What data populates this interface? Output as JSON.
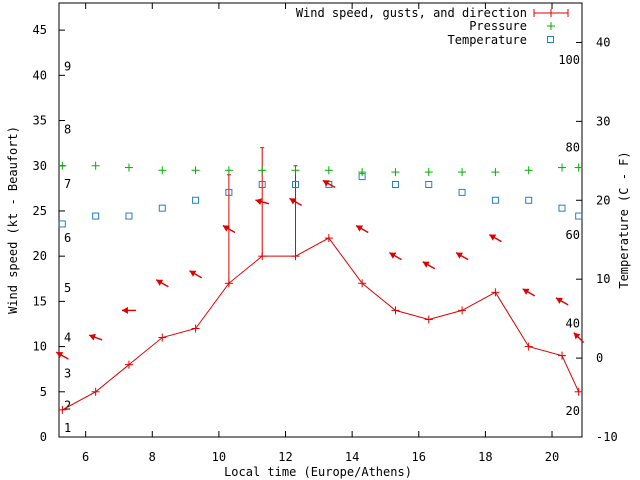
{
  "chart_data": {
    "type": "line",
    "xlabel": "Local time (Europe/Athens)",
    "ylabel_left": "Wind speed (kt - Beaufort)",
    "ylabel_right": "Temperature (C - F)",
    "xlim": [
      5.2,
      20.9
    ],
    "ylim_left": [
      0,
      48
    ],
    "ylim_right": [
      -10,
      45
    ],
    "x_ticks": [
      6,
      8,
      10,
      12,
      14,
      16,
      18,
      20
    ],
    "y_left_ticks": [
      0,
      5,
      10,
      15,
      20,
      25,
      30,
      35,
      40,
      45
    ],
    "y_right_ticks": [
      -10,
      0,
      10,
      20,
      30,
      40
    ],
    "beaufort_labels": [
      {
        "label": "1",
        "kt": 1
      },
      {
        "label": "2",
        "kt": 3.5
      },
      {
        "label": "3",
        "kt": 7
      },
      {
        "label": "4",
        "kt": 11
      },
      {
        "label": "5",
        "kt": 16.5
      },
      {
        "label": "6",
        "kt": 22
      },
      {
        "label": "7",
        "kt": 28
      },
      {
        "label": "8",
        "kt": 34
      },
      {
        "label": "9",
        "kt": 41
      }
    ],
    "fahrenheit_labels": [
      {
        "label": "20",
        "c": -6.7
      },
      {
        "label": "40",
        "c": 4.4
      },
      {
        "label": "60",
        "c": 15.6
      },
      {
        "label": "80",
        "c": 26.7
      },
      {
        "label": "100",
        "c": 37.8
      }
    ],
    "legend": {
      "position": "top-right",
      "entries": [
        "Wind speed, gusts, and direction",
        "Pressure",
        "Temperature"
      ]
    },
    "series": [
      {
        "name": "Wind speed, gusts, and direction",
        "color": "#e00000",
        "x": [
          5.3,
          6.3,
          7.3,
          8.3,
          9.3,
          10.3,
          11.3,
          12.3,
          13.3,
          14.3,
          15.3,
          16.3,
          17.3,
          18.3,
          19.3,
          20.3,
          20.8
        ],
        "values": [
          3,
          5,
          8,
          11,
          12,
          17,
          20,
          20,
          22,
          17,
          14,
          13,
          14,
          16,
          10,
          9,
          5
        ],
        "gusts": [
          {
            "x": 10.3,
            "value": 29
          },
          {
            "x": 11.3,
            "value": 32
          },
          {
            "x": 12.3,
            "value": 30
          }
        ],
        "direction_angles_deg": [
          60,
          70,
          90,
          60,
          60,
          60,
          75,
          60,
          60,
          60,
          60,
          60,
          60,
          60,
          60,
          60,
          45
        ]
      },
      {
        "name": "Pressure",
        "color": "#00b000",
        "x": [
          5.3,
          6.3,
          7.3,
          8.3,
          9.3,
          10.3,
          11.3,
          12.3,
          13.3,
          14.3,
          15.3,
          16.3,
          17.3,
          18.3,
          19.3,
          20.3,
          20.8
        ],
        "values": [
          30,
          30,
          29.8,
          29.5,
          29.5,
          29.5,
          29.5,
          29.5,
          29.5,
          29.3,
          29.3,
          29.3,
          29.3,
          29.3,
          29.5,
          29.8,
          29.8
        ]
      },
      {
        "name": "Temperature",
        "color": "#1f7fcf",
        "axis": "right",
        "x": [
          5.3,
          6.3,
          7.3,
          8.3,
          9.3,
          10.3,
          11.3,
          12.3,
          13.3,
          14.3,
          15.3,
          16.3,
          17.3,
          18.3,
          19.3,
          20.3,
          20.8
        ],
        "values": [
          17,
          18,
          18,
          19,
          20,
          21,
          22,
          22,
          22,
          23,
          22,
          22,
          21,
          20,
          20,
          19,
          18
        ]
      }
    ]
  }
}
